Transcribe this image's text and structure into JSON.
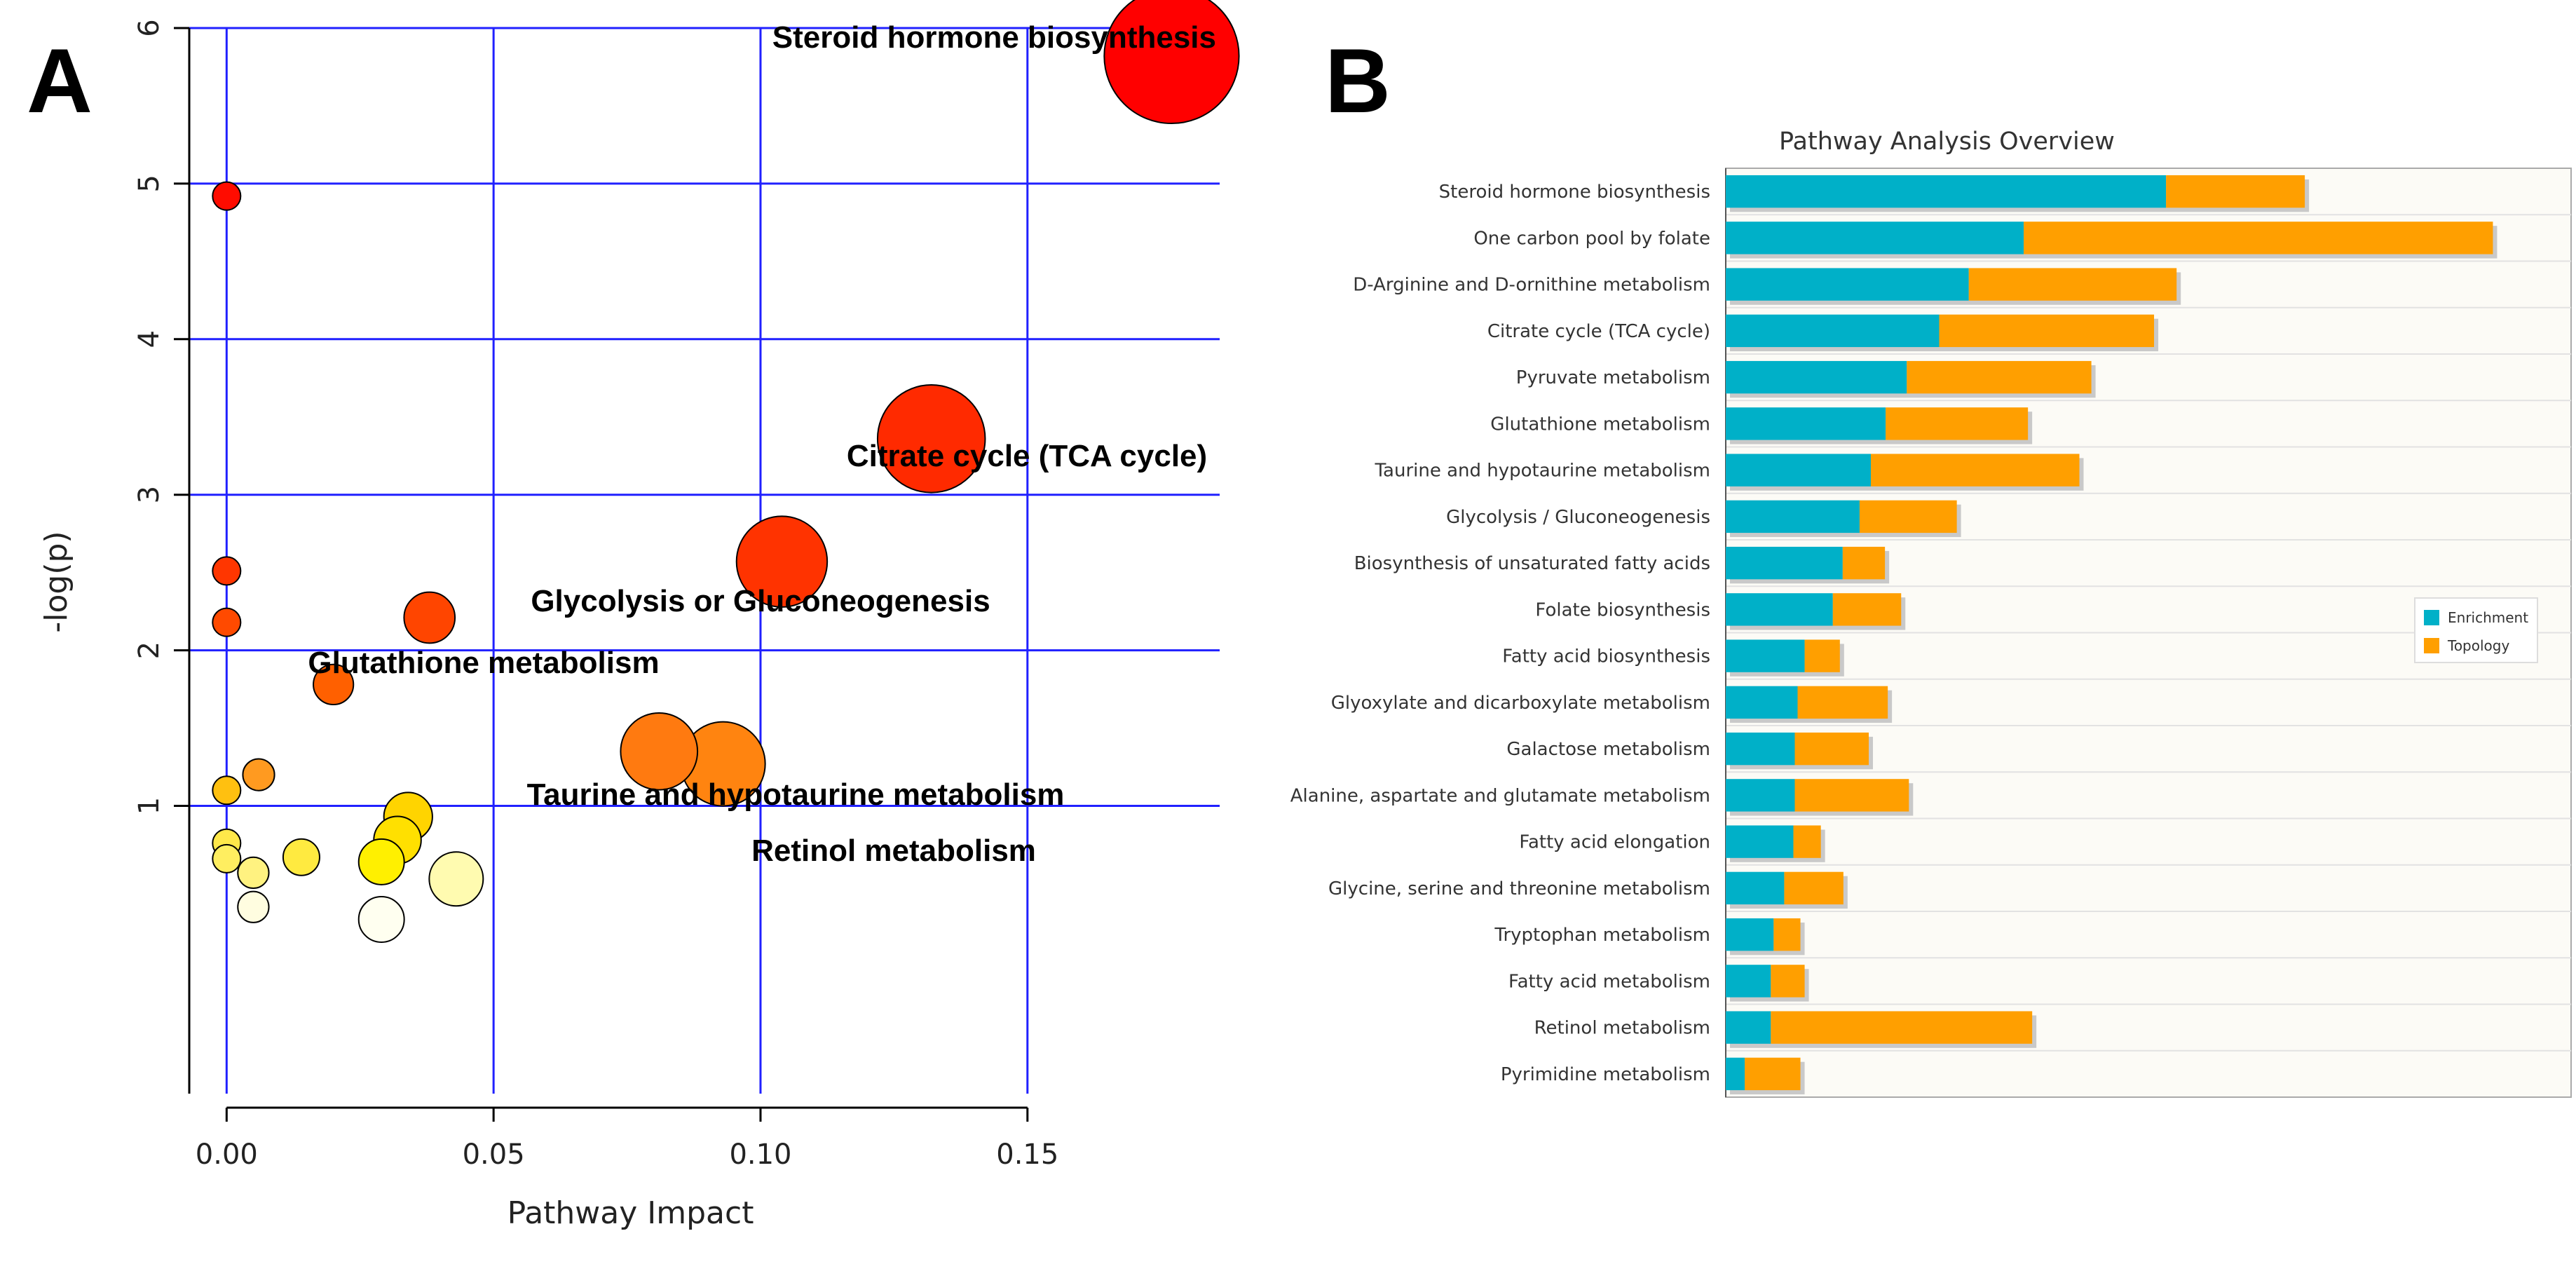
{
  "panels": {
    "a_label": "A",
    "b_label": "B"
  },
  "chart_data": [
    {
      "type": "scatter",
      "subtype": "bubble",
      "title": "",
      "xlabel": "Pathway Impact",
      "ylabel": "-log(p)",
      "xlim": [
        -0.007,
        0.186
      ],
      "ylim": [
        -0.85,
        6.0
      ],
      "xticks": [
        0.0,
        0.05,
        0.1,
        0.15
      ],
      "xtick_labels": [
        "0.00",
        "0.05",
        "0.10",
        "0.15"
      ],
      "yticks": [
        1,
        2,
        3,
        4,
        5,
        6
      ],
      "ytick_labels": [
        "1",
        "2",
        "3",
        "4",
        "5",
        "6"
      ],
      "grid": true,
      "points": [
        {
          "x": 0.177,
          "y": 5.82,
          "impact_size": 0.177,
          "color": "#ff0000",
          "label": "Steroid hormone biosynthesis"
        },
        {
          "x": 0.132,
          "y": 3.36,
          "impact_size": 0.132,
          "color": "#ff2a00",
          "label": "Citrate cycle (TCA cycle)"
        },
        {
          "x": 0.104,
          "y": 2.57,
          "impact_size": 0.104,
          "color": "#ff3300",
          "label": "Glycolysis or Gluconeogenesis"
        },
        {
          "x": 0.038,
          "y": 2.21,
          "impact_size": 0.038,
          "color": "#ff4500",
          "label": "Glutathione metabolism"
        },
        {
          "x": 0.081,
          "y": 1.35,
          "impact_size": 0.081,
          "color": "#ff7a10",
          "label": "Taurine and hypotaurine metabolism"
        },
        {
          "x": 0.093,
          "y": 1.27,
          "impact_size": 0.093,
          "color": "#ff8410",
          "label": "Retinol metabolism"
        },
        {
          "x": 0.0,
          "y": 4.92,
          "impact_size": 0.0,
          "color": "#ff0c00",
          "label": ""
        },
        {
          "x": 0.0,
          "y": 2.51,
          "impact_size": 0.0,
          "color": "#ff3600",
          "label": ""
        },
        {
          "x": 0.0,
          "y": 2.18,
          "impact_size": 0.0,
          "color": "#ff4a00",
          "label": ""
        },
        {
          "x": 0.02,
          "y": 1.78,
          "impact_size": 0.02,
          "color": "#ff6000",
          "label": ""
        },
        {
          "x": 0.006,
          "y": 1.2,
          "impact_size": 0.006,
          "color": "#ff9a20",
          "label": ""
        },
        {
          "x": 0.0,
          "y": 1.1,
          "impact_size": 0.0,
          "color": "#ffc010",
          "label": ""
        },
        {
          "x": 0.034,
          "y": 0.93,
          "impact_size": 0.034,
          "color": "#ffd400",
          "label": ""
        },
        {
          "x": 0.032,
          "y": 0.78,
          "impact_size": 0.032,
          "color": "#ffe000",
          "label": ""
        },
        {
          "x": 0.0,
          "y": 0.76,
          "impact_size": 0.0,
          "color": "#ffe84a",
          "label": ""
        },
        {
          "x": 0.014,
          "y": 0.67,
          "impact_size": 0.014,
          "color": "#ffea40",
          "label": ""
        },
        {
          "x": 0.0,
          "y": 0.66,
          "impact_size": 0.0,
          "color": "#ffee60",
          "label": ""
        },
        {
          "x": 0.029,
          "y": 0.64,
          "impact_size": 0.029,
          "color": "#fff000",
          "label": ""
        },
        {
          "x": 0.005,
          "y": 0.57,
          "impact_size": 0.005,
          "color": "#fff280",
          "label": ""
        },
        {
          "x": 0.043,
          "y": 0.53,
          "impact_size": 0.043,
          "color": "#fffbb0",
          "label": ""
        },
        {
          "x": 0.005,
          "y": 0.35,
          "impact_size": 0.005,
          "color": "#fffde0",
          "label": ""
        },
        {
          "x": 0.029,
          "y": 0.27,
          "impact_size": 0.029,
          "color": "#fffff0",
          "label": ""
        }
      ]
    },
    {
      "type": "bar",
      "subtype": "horizontal-stacked",
      "title": "Pathway Analysis Overview",
      "xlabel": "",
      "ylabel": "",
      "xlim": [
        0,
        12
      ],
      "grid": true,
      "legend": "right",
      "categories": [
        "Steroid hormone biosynthesis",
        "One carbon pool by folate",
        "D-Arginine and D-ornithine metabolism",
        "Citrate cycle (TCA cycle)",
        "Pyruvate metabolism",
        "Glutathione metabolism",
        "Taurine and hypotaurine metabolism",
        "Glycolysis / Gluconeogenesis",
        "Biosynthesis of unsaturated fatty acids",
        "Folate biosynthesis",
        "Fatty acid biosynthesis",
        "Glyoxylate and dicarboxylate metabolism",
        "Galactose metabolism",
        "Alanine, aspartate and glutamate metabolism",
        "Fatty acid elongation",
        "Glycine, serine and threonine metabolism",
        "Tryptophan metabolism",
        "Fatty acid metabolism",
        "Retinol metabolism",
        "Pyrimidine metabolism"
      ],
      "series": [
        {
          "name": "Enrichment",
          "color": "#00b0c8",
          "values": [
            6.25,
            4.23,
            3.45,
            3.03,
            2.57,
            2.27,
            2.06,
            1.9,
            1.66,
            1.52,
            1.12,
            1.02,
            0.98,
            0.98,
            0.96,
            0.83,
            0.68,
            0.64,
            0.64,
            0.27
          ]
        },
        {
          "name": "Topology",
          "color": "#ff9f00",
          "values": [
            1.97,
            6.66,
            2.95,
            3.05,
            2.62,
            2.02,
            2.96,
            1.38,
            0.6,
            0.97,
            0.5,
            1.28,
            1.05,
            1.62,
            0.39,
            0.84,
            0.38,
            0.48,
            3.71,
            0.79
          ]
        }
      ]
    }
  ]
}
